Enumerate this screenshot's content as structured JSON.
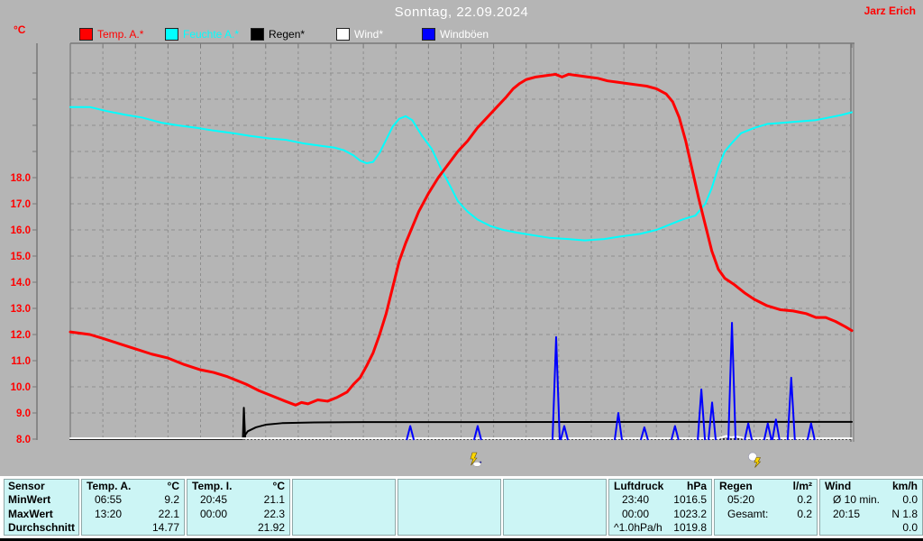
{
  "header": {
    "title": "Sonntag, 22.09.2024",
    "owner": "Jarz Erich"
  },
  "colors": {
    "background": "#b5b5b5",
    "grid": "#8e8e8e",
    "axis_frame": "#787878",
    "y_label_color": "#ff0000",
    "title_text": "#ffffff",
    "table_bg": "#ccf5f5",
    "temp_red": "#ff0000",
    "humidity_cyan": "#00ffff",
    "rain_black": "#000000",
    "wind_white": "#ffffff",
    "gust_blue": "#0000ff"
  },
  "legend": {
    "items": [
      {
        "label": "Temp. A.*",
        "color": "#ff0000",
        "label_color": "#ff0000"
      },
      {
        "label": "Feuchte A.*",
        "color": "#00ffff",
        "label_color": "#00ffff"
      },
      {
        "label": "Regen*",
        "color": "#000000",
        "label_color": "#000000"
      },
      {
        "label": "Wind*",
        "color": "#ffffff",
        "label_color": "#ffffff"
      },
      {
        "label": "Windböen",
        "color": "#0000ff",
        "label_color": "#ffffff"
      }
    ]
  },
  "chart_data": {
    "type": "line",
    "title": "Sonntag, 22.09.2024",
    "unit_label": "°C",
    "x_axis": {
      "kind": "time_of_day",
      "range_hours": [
        0,
        24
      ],
      "gridline_every_hours": 1,
      "tick_every_hours": 1,
      "labels_shown": false
    },
    "y_axis": {
      "label": "°C",
      "min": 8.0,
      "max": 22.4,
      "tick_step": 1.0,
      "labeled_ticks": [
        18.0,
        17.0,
        16.0,
        15.0,
        14.0,
        13.0,
        12.0,
        11.0,
        10.0,
        9.0,
        8.0
      ],
      "unlabeled_ticks": [
        22.0,
        21.0,
        20.0,
        19.0
      ],
      "grid": "dashed"
    },
    "scale_note": "Humidity, rain and wind curves are plotted on the same pixel grid as temperature; their values below are expressed in temperature-axis units as drawn.",
    "series": [
      {
        "id": "feuchte_a",
        "name": "Feuchte A.*",
        "color": "#00ffff",
        "width": 2,
        "render": "line",
        "points": [
          [
            0,
            20.7
          ],
          [
            0.6,
            20.7
          ],
          [
            1.1,
            20.55
          ],
          [
            1.7,
            20.4
          ],
          [
            2.2,
            20.3
          ],
          [
            2.8,
            20.1
          ],
          [
            3.3,
            20.0
          ],
          [
            3.9,
            19.9
          ],
          [
            4.4,
            19.8
          ],
          [
            5,
            19.7
          ],
          [
            5.5,
            19.6
          ],
          [
            6.1,
            19.5
          ],
          [
            6.6,
            19.45
          ],
          [
            7.2,
            19.3
          ],
          [
            7.8,
            19.2
          ],
          [
            8.1,
            19.15
          ],
          [
            8.4,
            19.05
          ],
          [
            8.7,
            18.85
          ],
          [
            8.9,
            18.65
          ],
          [
            9.1,
            18.55
          ],
          [
            9.3,
            18.6
          ],
          [
            9.5,
            18.95
          ],
          [
            9.7,
            19.45
          ],
          [
            9.9,
            19.95
          ],
          [
            10.1,
            20.25
          ],
          [
            10.3,
            20.35
          ],
          [
            10.5,
            20.2
          ],
          [
            10.8,
            19.6
          ],
          [
            11.1,
            19.1
          ],
          [
            11.4,
            18.3
          ],
          [
            11.7,
            17.6
          ],
          [
            11.9,
            17.1
          ],
          [
            12.2,
            16.7
          ],
          [
            12.5,
            16.4
          ],
          [
            12.9,
            16.15
          ],
          [
            13.3,
            16.0
          ],
          [
            13.7,
            15.9
          ],
          [
            14.2,
            15.8
          ],
          [
            14.7,
            15.7
          ],
          [
            15.3,
            15.65
          ],
          [
            15.8,
            15.6
          ],
          [
            16.4,
            15.65
          ],
          [
            16.9,
            15.75
          ],
          [
            17.5,
            15.85
          ],
          [
            18,
            16.0
          ],
          [
            18.4,
            16.2
          ],
          [
            18.8,
            16.4
          ],
          [
            19.2,
            16.55
          ],
          [
            19.5,
            17.0
          ],
          [
            19.7,
            17.6
          ],
          [
            19.9,
            18.4
          ],
          [
            20.1,
            19.0
          ],
          [
            20.3,
            19.3
          ],
          [
            20.6,
            19.7
          ],
          [
            21,
            19.9
          ],
          [
            21.4,
            20.05
          ],
          [
            21.9,
            20.1
          ],
          [
            22.4,
            20.15
          ],
          [
            22.9,
            20.2
          ],
          [
            23.3,
            20.3
          ],
          [
            23.7,
            20.4
          ],
          [
            24,
            20.5
          ]
        ]
      },
      {
        "id": "regen",
        "name": "Regen*",
        "color": "#000000",
        "width": 2,
        "render": "line",
        "points": [
          [
            0,
            8.0
          ],
          [
            5.28,
            8.0
          ],
          [
            5.45,
            8.3
          ],
          [
            5.7,
            8.45
          ],
          [
            6.0,
            8.55
          ],
          [
            6.5,
            8.61
          ],
          [
            7.5,
            8.64
          ],
          [
            9,
            8.65
          ],
          [
            20,
            8.66
          ],
          [
            24,
            8.66
          ]
        ]
      },
      {
        "id": "regen_burst",
        "name": "Regen Schauer",
        "color": "#000000",
        "width": 2,
        "render": "line",
        "points": [
          [
            5.3,
            8.02
          ],
          [
            5.33,
            9.2
          ],
          [
            5.37,
            8.02
          ]
        ]
      },
      {
        "id": "wind",
        "name": "Wind*",
        "color": "#ffffff",
        "width": 2,
        "render": "line",
        "points": [
          [
            0,
            8.03
          ],
          [
            19.9,
            8.03
          ],
          [
            20.15,
            8.12
          ],
          [
            20.3,
            8.06
          ],
          [
            20.45,
            8.1
          ],
          [
            20.7,
            8.03
          ],
          [
            24,
            8.03
          ]
        ]
      },
      {
        "id": "windboeen",
        "name": "Windböen",
        "color": "#0000ff",
        "width": 2,
        "render": "spikes",
        "points": [
          [
            10.44,
            8.5
          ],
          [
            12.51,
            8.5
          ],
          [
            14.92,
            11.9
          ],
          [
            15.17,
            8.5
          ],
          [
            16.83,
            9.0
          ],
          [
            17.63,
            8.45
          ],
          [
            18.57,
            8.5
          ],
          [
            19.38,
            9.9
          ],
          [
            19.71,
            9.4
          ],
          [
            20.32,
            12.45
          ],
          [
            20.82,
            8.6
          ],
          [
            21.42,
            8.6
          ],
          [
            21.67,
            8.75
          ],
          [
            22.14,
            10.35
          ],
          [
            22.75,
            8.6
          ]
        ]
      },
      {
        "id": "temp_a",
        "name": "Temp. A.*",
        "color": "#ff0000",
        "width": 3,
        "render": "line",
        "points": [
          [
            0,
            12.1
          ],
          [
            0.6,
            12.0
          ],
          [
            1,
            11.85
          ],
          [
            1.5,
            11.65
          ],
          [
            2,
            11.45
          ],
          [
            2.5,
            11.25
          ],
          [
            3,
            11.1
          ],
          [
            3.5,
            10.85
          ],
          [
            4,
            10.65
          ],
          [
            4.4,
            10.55
          ],
          [
            4.8,
            10.4
          ],
          [
            5,
            10.3
          ],
          [
            5.4,
            10.1
          ],
          [
            5.8,
            9.85
          ],
          [
            6.2,
            9.65
          ],
          [
            6.6,
            9.45
          ],
          [
            6.92,
            9.3
          ],
          [
            7.1,
            9.4
          ],
          [
            7.3,
            9.35
          ],
          [
            7.6,
            9.5
          ],
          [
            7.9,
            9.45
          ],
          [
            8.2,
            9.6
          ],
          [
            8.5,
            9.8
          ],
          [
            8.7,
            10.1
          ],
          [
            8.9,
            10.35
          ],
          [
            9.1,
            10.8
          ],
          [
            9.3,
            11.3
          ],
          [
            9.5,
            12.0
          ],
          [
            9.7,
            12.8
          ],
          [
            9.9,
            13.8
          ],
          [
            10.1,
            14.8
          ],
          [
            10.3,
            15.5
          ],
          [
            10.5,
            16.1
          ],
          [
            10.7,
            16.7
          ],
          [
            11,
            17.4
          ],
          [
            11.3,
            18.0
          ],
          [
            11.6,
            18.5
          ],
          [
            11.9,
            19.0
          ],
          [
            12.2,
            19.4
          ],
          [
            12.5,
            19.9
          ],
          [
            12.8,
            20.3
          ],
          [
            13.1,
            20.7
          ],
          [
            13.4,
            21.1
          ],
          [
            13.6,
            21.4
          ],
          [
            13.8,
            21.6
          ],
          [
            14,
            21.75
          ],
          [
            14.3,
            21.85
          ],
          [
            14.6,
            21.9
          ],
          [
            14.9,
            21.95
          ],
          [
            15.1,
            21.85
          ],
          [
            15.3,
            21.95
          ],
          [
            15.6,
            21.9
          ],
          [
            15.9,
            21.85
          ],
          [
            16.2,
            21.8
          ],
          [
            16.5,
            21.7
          ],
          [
            16.8,
            21.65
          ],
          [
            17.1,
            21.6
          ],
          [
            17.4,
            21.55
          ],
          [
            17.7,
            21.5
          ],
          [
            18,
            21.4
          ],
          [
            18.3,
            21.2
          ],
          [
            18.5,
            20.9
          ],
          [
            18.7,
            20.3
          ],
          [
            18.9,
            19.4
          ],
          [
            19.1,
            18.3
          ],
          [
            19.3,
            17.2
          ],
          [
            19.5,
            16.2
          ],
          [
            19.7,
            15.2
          ],
          [
            19.9,
            14.5
          ],
          [
            20.1,
            14.15
          ],
          [
            20.4,
            13.9
          ],
          [
            20.7,
            13.6
          ],
          [
            21,
            13.35
          ],
          [
            21.4,
            13.1
          ],
          [
            21.8,
            12.95
          ],
          [
            22.2,
            12.9
          ],
          [
            22.6,
            12.8
          ],
          [
            22.9,
            12.65
          ],
          [
            23.2,
            12.65
          ],
          [
            23.5,
            12.5
          ],
          [
            23.8,
            12.3
          ],
          [
            24,
            12.15
          ]
        ]
      }
    ],
    "markers": [
      {
        "icon": "lightning-cloud",
        "x_hour": 12.4
      },
      {
        "icon": "sun-lightning",
        "x_hour": 21.0
      }
    ]
  },
  "stats": {
    "row_labels": [
      "Sensor",
      "MinWert",
      "MaxWert",
      "Durchschnitt"
    ],
    "columns": [
      {
        "name": "Temp. A.",
        "unit": "°C",
        "min_time": "06:55",
        "min_value": "9.2",
        "max_time": "13:20",
        "max_value": "22.1",
        "avg_label": "",
        "avg_value": "14.77"
      },
      {
        "name": "Temp. I.",
        "unit": "°C",
        "min_time": "20:45",
        "min_value": "21.1",
        "max_time": "00:00",
        "max_value": "22.3",
        "avg_label": "",
        "avg_value": "21.92"
      },
      {},
      {},
      {},
      {
        "name": "Luftdruck",
        "unit": "hPa",
        "min_time": "23:40",
        "min_value": "1016.5",
        "max_time": "00:00",
        "max_value": "1023.2",
        "avg_label": "^1.0hPa/h",
        "avg_value": "1019.8"
      },
      {
        "name": "Regen",
        "unit": "l/m²",
        "min_time": "",
        "min_value": "",
        "max_time": "05:20",
        "max_value": "0.2",
        "avg_label": "Gesamt:",
        "avg_value": "0.2"
      },
      {
        "name": "Wind",
        "unit": "km/h",
        "min_time": "Ø 10 min.",
        "min_value": "0.0",
        "max_time": "20:15",
        "max_value": "N 1.8",
        "avg_label": "",
        "avg_value": "0.0"
      }
    ]
  }
}
